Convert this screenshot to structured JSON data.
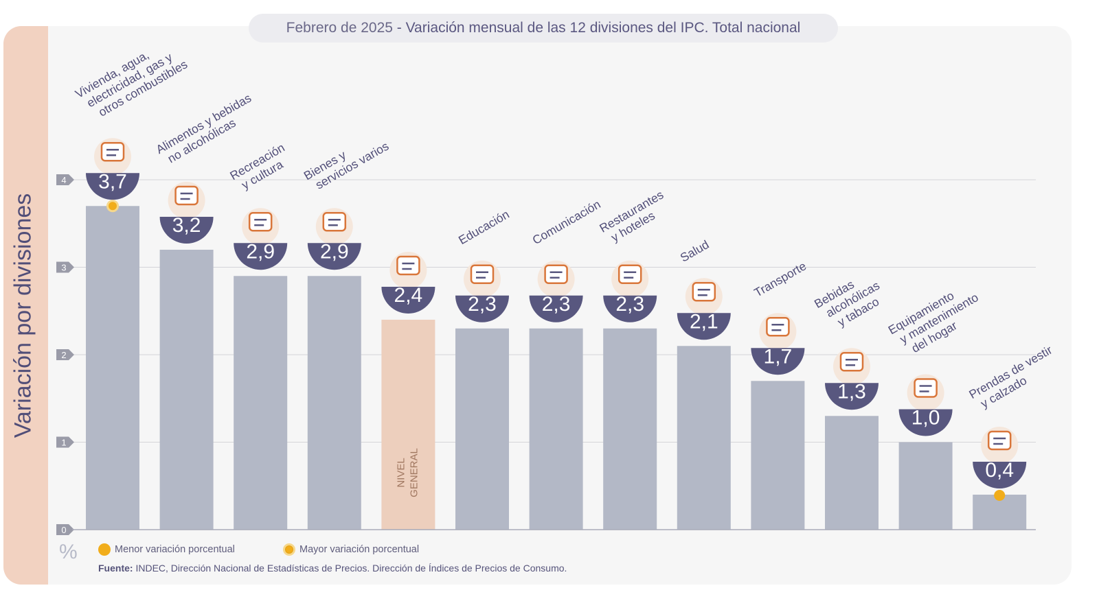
{
  "title": {
    "prefix": "Febrero de 2025",
    "separator": " - ",
    "main": "Variación mensual de las 12 divisiones del IPC. Total nacional"
  },
  "colors": {
    "bar": "#b3b8c6",
    "bar_highlight": "#edcfbd",
    "badge": "#58577f",
    "accent": "#f1ad1b",
    "icon": "#d9763a",
    "text": "#514e78",
    "grid": "#d4d4d8",
    "tick_marker": "#9a9ba8"
  },
  "y_axis_label": "Variación por divisiones",
  "unit_symbol": "%",
  "legend": {
    "min_label": "Menor variación porcentual",
    "max_label": "Mayor variación porcentual"
  },
  "source": {
    "label": "Fuente:",
    "text": "INDEC, Dirección Nacional de Estadísticas de Precios. Dirección de Índices de Precios de Consumo."
  },
  "chart_data": {
    "type": "bar",
    "title": "Febrero de 2025 - Variación mensual de las 12 divisiones del IPC. Total nacional",
    "ylabel": "Variación por divisiones",
    "xlabel": "",
    "ylim": [
      0,
      4
    ],
    "yticks": [
      0,
      1,
      2,
      3,
      4
    ],
    "grid": true,
    "categories": [
      "Vivienda, agua, electricidad, gas y otros combustibles",
      "Alimentos y bebidas no alcohólicas",
      "Recreación y cultura",
      "Bienes y servicios varios",
      "NIVEL GENERAL",
      "Educación",
      "Comunicación",
      "Restaurantes y hoteles",
      "Salud",
      "Transporte",
      "Bebidas alcohólicas y tabaco",
      "Equipamiento y mantenimiento del hogar",
      "Prendas de vestir y calzado"
    ],
    "category_lines": [
      [
        "Vivienda, agua,",
        "electricidad, gas y",
        "otros combustibles"
      ],
      [
        "Alimentos y bebidas",
        "no alcohólicas"
      ],
      [
        "Recreación",
        "y cultura"
      ],
      [
        "Bienes y",
        "servicios varios"
      ],
      [
        "NIVEL",
        "GENERAL"
      ],
      [
        "Educación"
      ],
      [
        "Comunicación"
      ],
      [
        "Restaurantes",
        "y hoteles"
      ],
      [
        "Salud"
      ],
      [
        "Transporte"
      ],
      [
        "Bebidas",
        "alcohólicas",
        "y tabaco"
      ],
      [
        "Equipamiento",
        "y mantenimiento",
        "del hogar"
      ],
      [
        "Prendas de vestir",
        "y calzado"
      ]
    ],
    "values": [
      3.7,
      3.2,
      2.9,
      2.9,
      2.4,
      2.3,
      2.3,
      2.3,
      2.1,
      1.7,
      1.3,
      1.0,
      0.4
    ],
    "value_labels": [
      "3,7",
      "3,2",
      "2,9",
      "2,9",
      "2,4",
      "2,3",
      "2,3",
      "2,3",
      "2,1",
      "1,7",
      "1,3",
      "1,0",
      "0,4"
    ],
    "icons": [
      "utilities-icon",
      "food-icon",
      "recreation-icon",
      "personal-care-icon",
      "shopping-bag-icon",
      "notebook-icon",
      "phone-icon",
      "restaurant-icon",
      "health-cross-icon",
      "car-icon",
      "drinks-icon",
      "appliance-icon",
      "clothing-icon"
    ],
    "highlight_index": 4,
    "max_index": 0,
    "min_index": 12
  }
}
